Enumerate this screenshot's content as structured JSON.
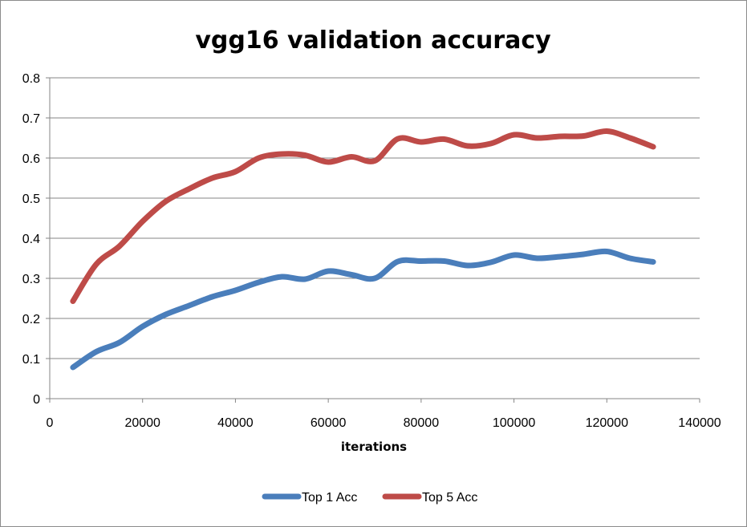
{
  "chart_data": {
    "type": "line",
    "title": "vgg16 validation accuracy",
    "xlabel": "iterations",
    "ylabel": "",
    "xlim": [
      0,
      140000
    ],
    "ylim": [
      0,
      0.8
    ],
    "xticks": [
      0,
      20000,
      40000,
      60000,
      80000,
      100000,
      120000,
      140000
    ],
    "yticks": [
      0,
      0.1,
      0.2,
      0.3,
      0.4,
      0.5,
      0.6,
      0.7,
      0.8
    ],
    "grid": true,
    "legend_position": "bottom",
    "x": [
      5000,
      10000,
      15000,
      20000,
      25000,
      30000,
      35000,
      40000,
      45000,
      50000,
      55000,
      60000,
      65000,
      70000,
      75000,
      80000,
      85000,
      90000,
      95000,
      100000,
      105000,
      110000,
      115000,
      120000,
      125000,
      130000
    ],
    "series": [
      {
        "name": "Top 1 Acc",
        "color": "#4a7ebb",
        "values": [
          0.078,
          0.117,
          0.14,
          0.18,
          0.21,
          0.232,
          0.254,
          0.27,
          0.29,
          0.304,
          0.298,
          0.318,
          0.309,
          0.3,
          0.342,
          0.343,
          0.343,
          0.332,
          0.34,
          0.358,
          0.35,
          0.354,
          0.36,
          0.367,
          0.35,
          0.341
        ]
      },
      {
        "name": "Top 5 Acc",
        "color": "#be4b48",
        "values": [
          0.243,
          0.335,
          0.38,
          0.442,
          0.492,
          0.523,
          0.55,
          0.566,
          0.6,
          0.61,
          0.607,
          0.59,
          0.603,
          0.593,
          0.648,
          0.64,
          0.647,
          0.63,
          0.636,
          0.658,
          0.65,
          0.654,
          0.655,
          0.667,
          0.65,
          0.628
        ]
      }
    ]
  }
}
